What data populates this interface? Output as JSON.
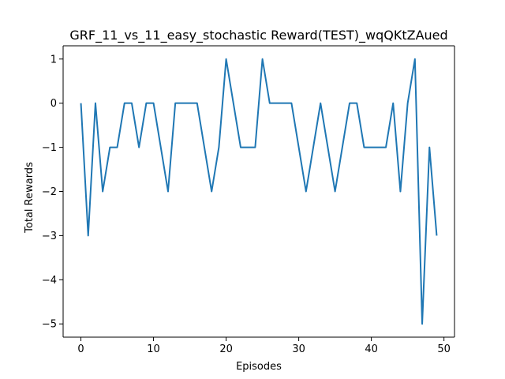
{
  "chart_data": {
    "type": "line",
    "title": "GRF_11_vs_11_easy_stochastic Reward(TEST)_wqQKtZAued",
    "xlabel": "Episodes",
    "ylabel": "Total Rewards",
    "xlim": [
      -2.45,
      51.45
    ],
    "ylim": [
      -5.3,
      1.3
    ],
    "xticks": [
      0,
      10,
      20,
      30,
      40,
      50
    ],
    "yticks": [
      -5,
      -4,
      -3,
      -2,
      -1,
      0,
      1
    ],
    "grid": false,
    "series": [
      {
        "color": "#1f77b4",
        "x": [
          0,
          1,
          2,
          3,
          4,
          5,
          6,
          7,
          8,
          9,
          10,
          11,
          12,
          13,
          14,
          15,
          16,
          17,
          18,
          19,
          20,
          21,
          22,
          23,
          24,
          25,
          26,
          27,
          28,
          29,
          30,
          31,
          32,
          33,
          34,
          35,
          36,
          37,
          38,
          39,
          40,
          41,
          42,
          43,
          44,
          45,
          46,
          47,
          48,
          49
        ],
        "values": [
          0,
          -3,
          0,
          -2,
          -1,
          -1,
          0,
          0,
          -1,
          0,
          0,
          -1,
          -2,
          0,
          0,
          0,
          0,
          -1,
          -2,
          -1,
          1,
          0,
          -1,
          -1,
          -1,
          1,
          0,
          0,
          0,
          0,
          -1,
          -2,
          -1,
          0,
          -1,
          -2,
          -1,
          0,
          0,
          -1,
          -1,
          -1,
          -1,
          0,
          -2,
          0,
          1,
          -5,
          -1,
          -3
        ]
      }
    ]
  }
}
